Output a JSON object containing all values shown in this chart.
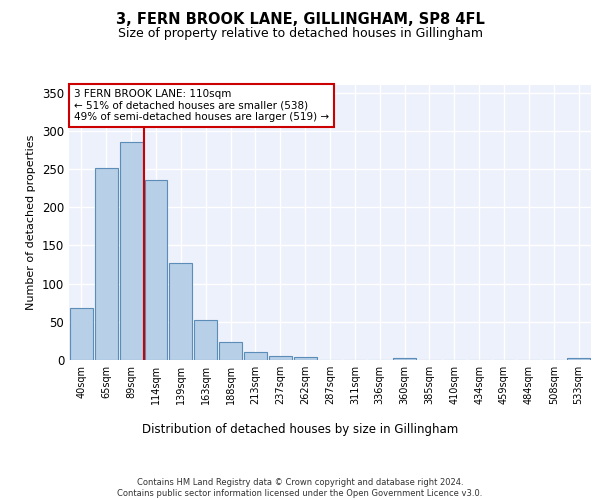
{
  "title1": "3, FERN BROOK LANE, GILLINGHAM, SP8 4FL",
  "title2": "Size of property relative to detached houses in Gillingham",
  "xlabel": "Distribution of detached houses by size in Gillingham",
  "ylabel": "Number of detached properties",
  "categories": [
    "40sqm",
    "65sqm",
    "89sqm",
    "114sqm",
    "139sqm",
    "163sqm",
    "188sqm",
    "213sqm",
    "237sqm",
    "262sqm",
    "287sqm",
    "311sqm",
    "336sqm",
    "360sqm",
    "385sqm",
    "410sqm",
    "434sqm",
    "459sqm",
    "484sqm",
    "508sqm",
    "533sqm"
  ],
  "values": [
    68,
    251,
    286,
    236,
    127,
    53,
    24,
    10,
    5,
    4,
    0,
    0,
    0,
    3,
    0,
    0,
    0,
    0,
    0,
    0,
    3
  ],
  "bar_color": "#b8cfe8",
  "bar_edge_color": "#5b8db8",
  "vline_color": "#cc0000",
  "vline_x": 2.5,
  "annotation_text": "3 FERN BROOK LANE: 110sqm\n← 51% of detached houses are smaller (538)\n49% of semi-detached houses are larger (519) →",
  "annotation_box_color": "#ffffff",
  "annotation_box_edge": "#cc0000",
  "background_color": "#edf1fb",
  "grid_color": "#ffffff",
  "footer": "Contains HM Land Registry data © Crown copyright and database right 2024.\nContains public sector information licensed under the Open Government Licence v3.0.",
  "ylim": [
    0,
    360
  ],
  "yticks": [
    0,
    50,
    100,
    150,
    200,
    250,
    300,
    350
  ]
}
